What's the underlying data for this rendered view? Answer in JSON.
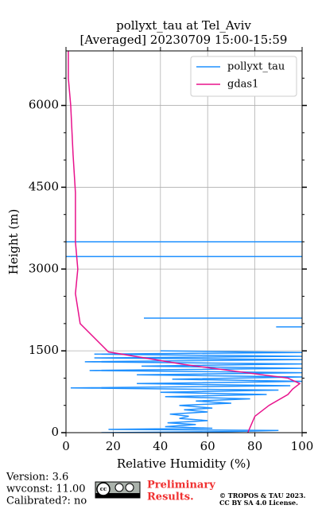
{
  "chart_data": {
    "type": "line",
    "title": [
      "pollyxt_tau at Tel_Aviv",
      "[Averaged] 20230709 15:00-15:59"
    ],
    "x_label": "Relative Humidity (%)",
    "y_label": "Height (m)",
    "xlim": [
      0,
      100
    ],
    "xticks": [
      0,
      20,
      40,
      60,
      80,
      100
    ],
    "ylim": [
      0,
      7000
    ],
    "yticks": [
      0,
      1500,
      3000,
      4500,
      6000
    ],
    "yticks_minor": [
      500,
      1000,
      2000,
      2500,
      3500,
      4000,
      5000,
      5500,
      6500
    ],
    "grid": true,
    "legend": "upper right",
    "series": [
      {
        "name": "pollyxt_tau",
        "color": "#1e90ff",
        "x": [
          15,
          70,
          90,
          18,
          62,
          42,
          55,
          43,
          60,
          48,
          52,
          44,
          60,
          50,
          62,
          48,
          70,
          55,
          78,
          42,
          85,
          40,
          90,
          2,
          95,
          30,
          100,
          45,
          100,
          30,
          100,
          10,
          100,
          32,
          100,
          8,
          100,
          12,
          100,
          12,
          100,
          40,
          null,
          89,
          100,
          null,
          33,
          100,
          null,
          0,
          100,
          null,
          0,
          100
        ],
        "y": [
          0,
          20,
          40,
          60,
          80,
          110,
          150,
          180,
          220,
          260,
          300,
          340,
          380,
          420,
          450,
          500,
          540,
          580,
          620,
          660,
          700,
          740,
          780,
          820,
          860,
          900,
          940,
          980,
          1020,
          1060,
          1100,
          1140,
          1180,
          1220,
          1260,
          1300,
          1340,
          1370,
          1400,
          1440,
          1470,
          1500,
          null,
          1940,
          1940,
          null,
          2100,
          2100,
          null,
          3230,
          3230,
          null,
          3500,
          3500
        ]
      },
      {
        "name": "gdas1",
        "color": "#e8128c",
        "x": [
          77,
          80,
          86,
          94,
          96,
          99,
          94,
          50,
          18,
          6,
          4,
          5,
          4,
          4,
          3,
          2,
          1,
          1
        ],
        "y": [
          0,
          300,
          500,
          700,
          800,
          900,
          1000,
          1250,
          1480,
          2000,
          2550,
          3000,
          3500,
          4400,
          5100,
          6000,
          6500,
          7000
        ]
      }
    ]
  },
  "footer": {
    "version": "Version: 3.6",
    "wvconst": "wvconst:  11.00",
    "calibrated": "Calibrated?: no",
    "preliminary": [
      "Preliminary",
      "Results."
    ],
    "copyright": [
      "© TROPOS & TAU 2023.",
      "CC BY SA 4.0 License."
    ]
  }
}
